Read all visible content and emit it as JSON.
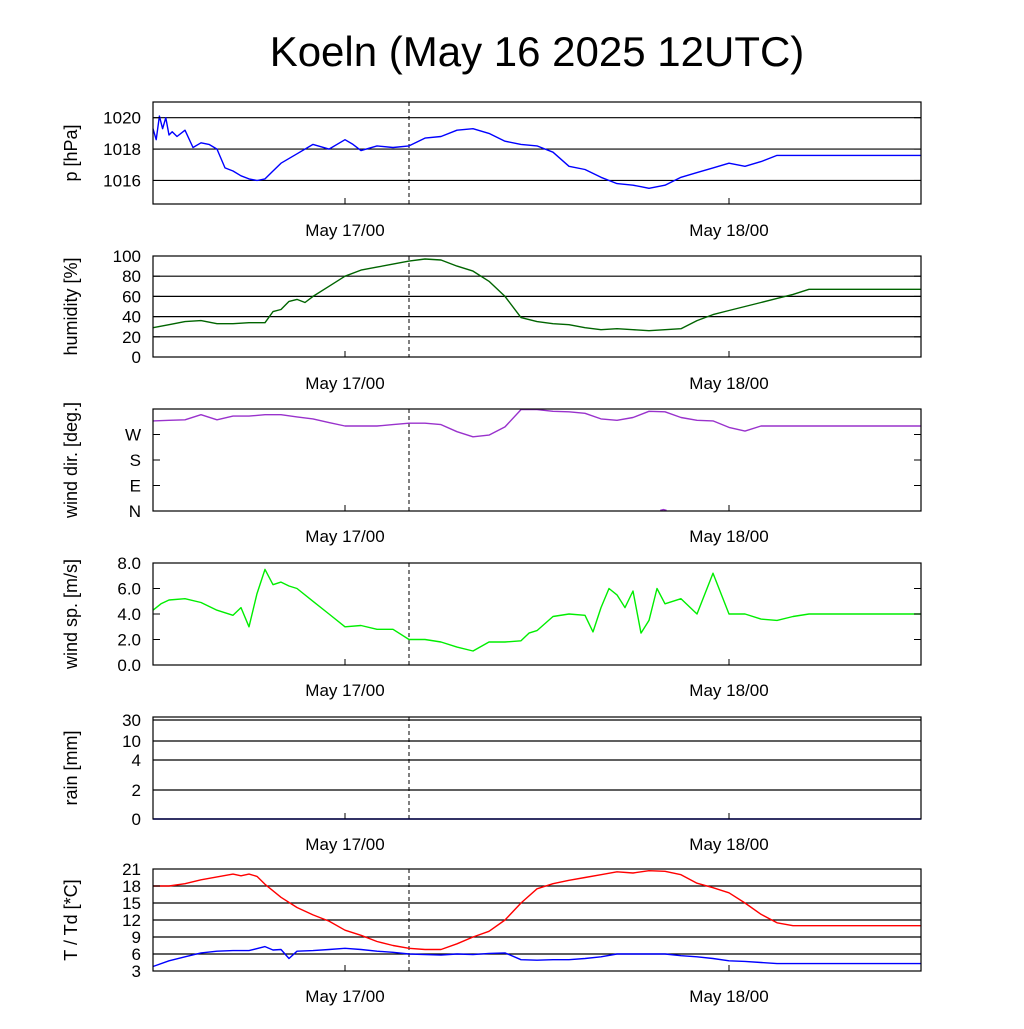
{
  "title": "Koeln (May 16 2025 12UTC)",
  "chart_data": [
    {
      "type": "line",
      "ylabel": "p [hPa]",
      "ylim": [
        1014.5,
        1021.0
      ],
      "yticks": [
        1016,
        1018,
        1020
      ],
      "ytick_labels": [
        "1016",
        "1018",
        "1020"
      ],
      "x_range": [
        12,
        60
      ],
      "x_ticks": [
        24,
        48
      ],
      "x_tick_labels": [
        "May 17/00",
        "May 18/00"
      ],
      "grid": "horizontal",
      "series": [
        {
          "color": "#0000ff",
          "x": [
            12,
            12.2,
            12.4,
            12.6,
            12.8,
            13.0,
            13.2,
            13.5,
            14,
            14.5,
            15,
            15.5,
            16,
            16.5,
            17,
            17.5,
            18,
            18.5,
            19,
            19.5,
            20,
            21,
            22,
            23,
            24,
            24.5,
            25,
            26,
            27,
            28,
            29,
            30,
            31,
            32,
            33,
            34,
            35,
            36,
            37,
            38,
            39,
            40,
            41,
            42,
            42.5,
            43,
            44,
            45,
            46,
            47,
            48,
            49,
            50,
            51,
            52,
            53,
            54,
            55,
            56,
            57,
            58,
            59,
            60
          ],
          "values": [
            1019.3,
            1018.6,
            1020.1,
            1019.3,
            1020.0,
            1018.9,
            1019.1,
            1018.8,
            1019.2,
            1018.1,
            1018.4,
            1018.3,
            1018.0,
            1016.8,
            1016.6,
            1016.3,
            1016.1,
            1016.0,
            1016.1,
            1016.6,
            1017.1,
            1017.7,
            1018.3,
            1018.0,
            1018.6,
            1018.3,
            1017.9,
            1018.2,
            1018.1,
            1018.2,
            1018.7,
            1018.8,
            1019.2,
            1019.3,
            1019.0,
            1018.5,
            1018.3,
            1018.2,
            1017.8,
            1016.9,
            1016.7,
            1016.2,
            1015.8,
            1015.7,
            1015.6,
            1015.5,
            1015.7,
            1016.2,
            1016.5,
            1016.8,
            1017.1,
            1016.9,
            1017.2,
            1017.6,
            1017.6,
            1017.6,
            1017.6,
            1017.6,
            1017.6,
            1017.6,
            1017.6,
            1017.6,
            1017.6
          ]
        }
      ]
    },
    {
      "type": "line",
      "ylabel": "humidity [%]",
      "ylim": [
        0,
        100
      ],
      "yticks": [
        0,
        20,
        40,
        60,
        80,
        100
      ],
      "ytick_labels": [
        "0",
        "20",
        "40",
        "60",
        "80",
        "100"
      ],
      "x_range": [
        12,
        60
      ],
      "x_ticks": [
        24,
        48
      ],
      "x_tick_labels": [
        "May 17/00",
        "May 18/00"
      ],
      "grid": "horizontal",
      "series": [
        {
          "color": "#006400",
          "x": [
            12,
            13,
            14,
            15,
            16,
            17,
            18,
            19,
            19.5,
            20,
            20.5,
            21,
            21.5,
            22,
            23,
            24,
            25,
            26,
            27,
            28,
            29,
            30,
            31,
            32,
            33,
            34,
            35,
            36,
            37,
            38,
            39,
            40,
            41,
            42,
            43,
            44,
            45,
            46,
            47,
            48,
            49,
            50,
            51,
            52,
            53,
            54,
            55,
            56,
            57,
            58,
            59,
            60
          ],
          "values": [
            29,
            32,
            35,
            36,
            33,
            33,
            34,
            34,
            45,
            47,
            55,
            57,
            54,
            60,
            70,
            80,
            86,
            89,
            92,
            95,
            97,
            96,
            90,
            85,
            75,
            60,
            39,
            35,
            33,
            32,
            29,
            27,
            28,
            27,
            26,
            27,
            28,
            36,
            42,
            46,
            50,
            54,
            58,
            62,
            67,
            67,
            67,
            67,
            67,
            67,
            67,
            67
          ]
        }
      ]
    },
    {
      "type": "line",
      "ylabel": "wind dir. [deg.]",
      "ylim": [
        0,
        360
      ],
      "yticks": [
        0,
        90,
        180,
        270
      ],
      "ytick_labels": [
        "N",
        "E",
        "S",
        "W"
      ],
      "x_range": [
        12,
        60
      ],
      "x_ticks": [
        24,
        48
      ],
      "x_tick_labels": [
        "May 17/00",
        "May 18/00"
      ],
      "grid": "none",
      "series": [
        {
          "color": "#9932cc",
          "x": [
            12,
            13,
            14,
            15,
            16,
            17,
            18,
            19,
            20,
            21,
            22,
            23,
            24,
            25,
            26,
            27,
            28,
            29,
            30,
            31,
            32,
            33,
            34,
            35,
            36,
            37,
            38,
            39,
            40,
            41,
            42,
            43,
            44,
            45,
            46,
            47,
            48,
            49,
            50,
            51,
            52,
            53,
            54,
            55,
            56,
            57,
            58,
            59,
            60
          ],
          "values": [
            318,
            320,
            322,
            340,
            322,
            335,
            335,
            340,
            340,
            332,
            325,
            312,
            300,
            300,
            300,
            305,
            310,
            310,
            305,
            280,
            262,
            268,
            297,
            358,
            358,
            352,
            350,
            345,
            325,
            320,
            330,
            352,
            350,
            330,
            320,
            318,
            295,
            282,
            300,
            300,
            300,
            300,
            300,
            300,
            300,
            300,
            300,
            300,
            300
          ]
        },
        {
          "color": "#9932cc",
          "x": [
            43.7,
            43.9,
            44.1
          ],
          "values": [
            2,
            5,
            2
          ]
        }
      ]
    },
    {
      "type": "line",
      "ylabel": "wind sp. [m/s]",
      "ylim": [
        0,
        8
      ],
      "yticks": [
        0,
        2,
        4,
        6,
        8
      ],
      "ytick_labels": [
        "0.0",
        "2.0",
        "4.0",
        "6.0",
        "8.0"
      ],
      "x_range": [
        12,
        60
      ],
      "x_ticks": [
        24,
        48
      ],
      "x_tick_labels": [
        "May 17/00",
        "May 18/00"
      ],
      "grid": "none",
      "series": [
        {
          "color": "#00ee00",
          "x": [
            12,
            12.5,
            13,
            14,
            15,
            16,
            17,
            17.5,
            18,
            18.5,
            19,
            19.5,
            20,
            20.5,
            21,
            22,
            23,
            24,
            25,
            26,
            27,
            28,
            29,
            30,
            31,
            32,
            33,
            34,
            35,
            35.5,
            36,
            37,
            38,
            39,
            39.5,
            40,
            40.5,
            41,
            41.5,
            42,
            42.5,
            43,
            43.5,
            44,
            45,
            46,
            47,
            48,
            49,
            50,
            51,
            52,
            53,
            54,
            55,
            56,
            57,
            58,
            59,
            60
          ],
          "values": [
            4.3,
            4.8,
            5.1,
            5.2,
            4.9,
            4.3,
            3.9,
            4.5,
            3.0,
            5.6,
            7.5,
            6.3,
            6.5,
            6.2,
            6.0,
            5.0,
            4.0,
            3.0,
            3.1,
            2.8,
            2.8,
            2.0,
            2.0,
            1.8,
            1.4,
            1.1,
            1.8,
            1.8,
            1.9,
            2.5,
            2.7,
            3.8,
            4.0,
            3.9,
            2.6,
            4.5,
            6.0,
            5.5,
            4.5,
            5.8,
            2.5,
            3.5,
            6.0,
            4.8,
            5.2,
            4.0,
            7.2,
            4.0,
            4.0,
            3.6,
            3.5,
            3.8,
            4.0,
            4.0,
            4.0,
            4.0,
            4.0,
            4.0,
            4.0,
            4.0
          ]
        }
      ]
    },
    {
      "type": "line",
      "ylabel": "rain [mm]",
      "yticks": [
        0,
        2,
        4,
        10,
        30
      ],
      "ytick_labels": [
        "0",
        "2",
        "4",
        "10",
        "30"
      ],
      "x_range": [
        12,
        60
      ],
      "x_ticks": [
        24,
        48
      ],
      "x_tick_labels": [
        "May 17/00",
        "May 18/00"
      ],
      "grid": "horizontal",
      "series": [
        {
          "color": "#0000ff",
          "x": [
            12,
            60
          ],
          "values": [
            0,
            0
          ]
        }
      ]
    },
    {
      "type": "line",
      "ylabel": "T / Td [*C]",
      "ylim": [
        3,
        21
      ],
      "yticks": [
        3,
        6,
        9,
        12,
        15,
        18,
        21
      ],
      "ytick_labels": [
        "3",
        "6",
        "9",
        "12",
        "15",
        "18",
        "21"
      ],
      "x_range": [
        12,
        60
      ],
      "x_ticks": [
        24,
        48
      ],
      "x_tick_labels": [
        "May 17/00",
        "May 18/00"
      ],
      "grid": "horizontal",
      "series": [
        {
          "color": "#ff0000",
          "x": [
            12,
            13,
            14,
            15,
            16,
            17,
            17.5,
            18,
            18.5,
            19,
            20,
            21,
            22,
            23,
            24,
            25,
            26,
            27,
            28,
            29,
            30,
            31,
            32,
            33,
            34,
            35,
            36,
            37,
            38,
            39,
            40,
            41,
            42,
            43,
            44,
            45,
            46,
            47,
            48,
            49,
            50,
            51,
            52,
            53,
            54,
            55,
            56,
            57,
            58,
            59,
            60
          ],
          "values": [
            18.0,
            18.0,
            18.4,
            19.1,
            19.6,
            20.1,
            19.8,
            20.1,
            19.7,
            18.3,
            16.0,
            14.2,
            12.9,
            11.8,
            10.2,
            9.3,
            8.2,
            7.5,
            7.0,
            6.8,
            6.8,
            7.8,
            9.0,
            10.0,
            12.0,
            15.0,
            17.5,
            18.4,
            19.0,
            19.5,
            20.0,
            20.5,
            20.3,
            20.7,
            20.6,
            20.0,
            18.5,
            17.7,
            16.8,
            15.0,
            13.0,
            11.5,
            11.0,
            11.0,
            11.0,
            11.0,
            11.0,
            11.0,
            11.0,
            11.0,
            11.0
          ]
        },
        {
          "color": "#0000ff",
          "x": [
            12,
            13,
            14,
            15,
            16,
            17,
            18,
            19,
            19.5,
            20,
            20.5,
            21,
            22,
            23,
            24,
            25,
            26,
            27,
            28,
            29,
            30,
            31,
            32,
            33,
            34,
            35,
            36,
            37,
            38,
            39,
            40,
            41,
            42,
            43,
            44,
            45,
            46,
            47,
            48,
            49,
            50,
            51,
            52,
            53,
            54,
            55,
            56,
            57,
            58,
            59,
            60
          ],
          "values": [
            3.8,
            4.8,
            5.5,
            6.2,
            6.5,
            6.6,
            6.6,
            7.3,
            6.7,
            6.8,
            5.2,
            6.5,
            6.6,
            6.8,
            7.0,
            6.8,
            6.5,
            6.3,
            6.0,
            5.9,
            5.8,
            6.0,
            5.9,
            6.1,
            6.2,
            5.0,
            4.9,
            5.0,
            5.0,
            5.2,
            5.5,
            6.0,
            6.0,
            6.0,
            6.0,
            5.7,
            5.5,
            5.2,
            4.8,
            4.7,
            4.5,
            4.3,
            4.3,
            4.3,
            4.3,
            4.3,
            4.3,
            4.3,
            4.3,
            4.3,
            4.3
          ]
        }
      ]
    }
  ]
}
